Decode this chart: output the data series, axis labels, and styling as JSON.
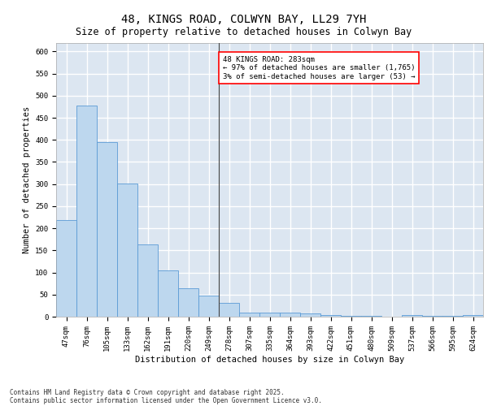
{
  "title": "48, KINGS ROAD, COLWYN BAY, LL29 7YH",
  "subtitle": "Size of property relative to detached houses in Colwyn Bay",
  "xlabel": "Distribution of detached houses by size in Colwyn Bay",
  "ylabel": "Number of detached properties",
  "categories": [
    "47sqm",
    "76sqm",
    "105sqm",
    "133sqm",
    "162sqm",
    "191sqm",
    "220sqm",
    "249sqm",
    "278sqm",
    "307sqm",
    "335sqm",
    "364sqm",
    "393sqm",
    "422sqm",
    "451sqm",
    "480sqm",
    "509sqm",
    "537sqm",
    "566sqm",
    "595sqm",
    "624sqm"
  ],
  "values": [
    218,
    478,
    395,
    302,
    163,
    105,
    65,
    47,
    32,
    9,
    9,
    9,
    8,
    3,
    2,
    2,
    0,
    3,
    2,
    1,
    3
  ],
  "bar_color": "#bdd7ee",
  "bar_edge_color": "#5b9bd5",
  "reference_line_x": 8,
  "reference_line_label": "48 KINGS ROAD: 283sqm",
  "annotation_line1": "← 97% of detached houses are smaller (1,765)",
  "annotation_line2": "3% of semi-detached houses are larger (53) →",
  "annotation_box_color": "#ff0000",
  "ylim": [
    0,
    620
  ],
  "yticks": [
    0,
    50,
    100,
    150,
    200,
    250,
    300,
    350,
    400,
    450,
    500,
    550,
    600
  ],
  "bg_color": "#dce6f1",
  "grid_color": "#ffffff",
  "footer1": "Contains HM Land Registry data © Crown copyright and database right 2025.",
  "footer2": "Contains public sector information licensed under the Open Government Licence v3.0.",
  "title_fontsize": 10,
  "subtitle_fontsize": 8.5,
  "axis_label_fontsize": 7.5,
  "tick_fontsize": 6.5,
  "annotation_fontsize": 6.5,
  "footer_fontsize": 5.5
}
